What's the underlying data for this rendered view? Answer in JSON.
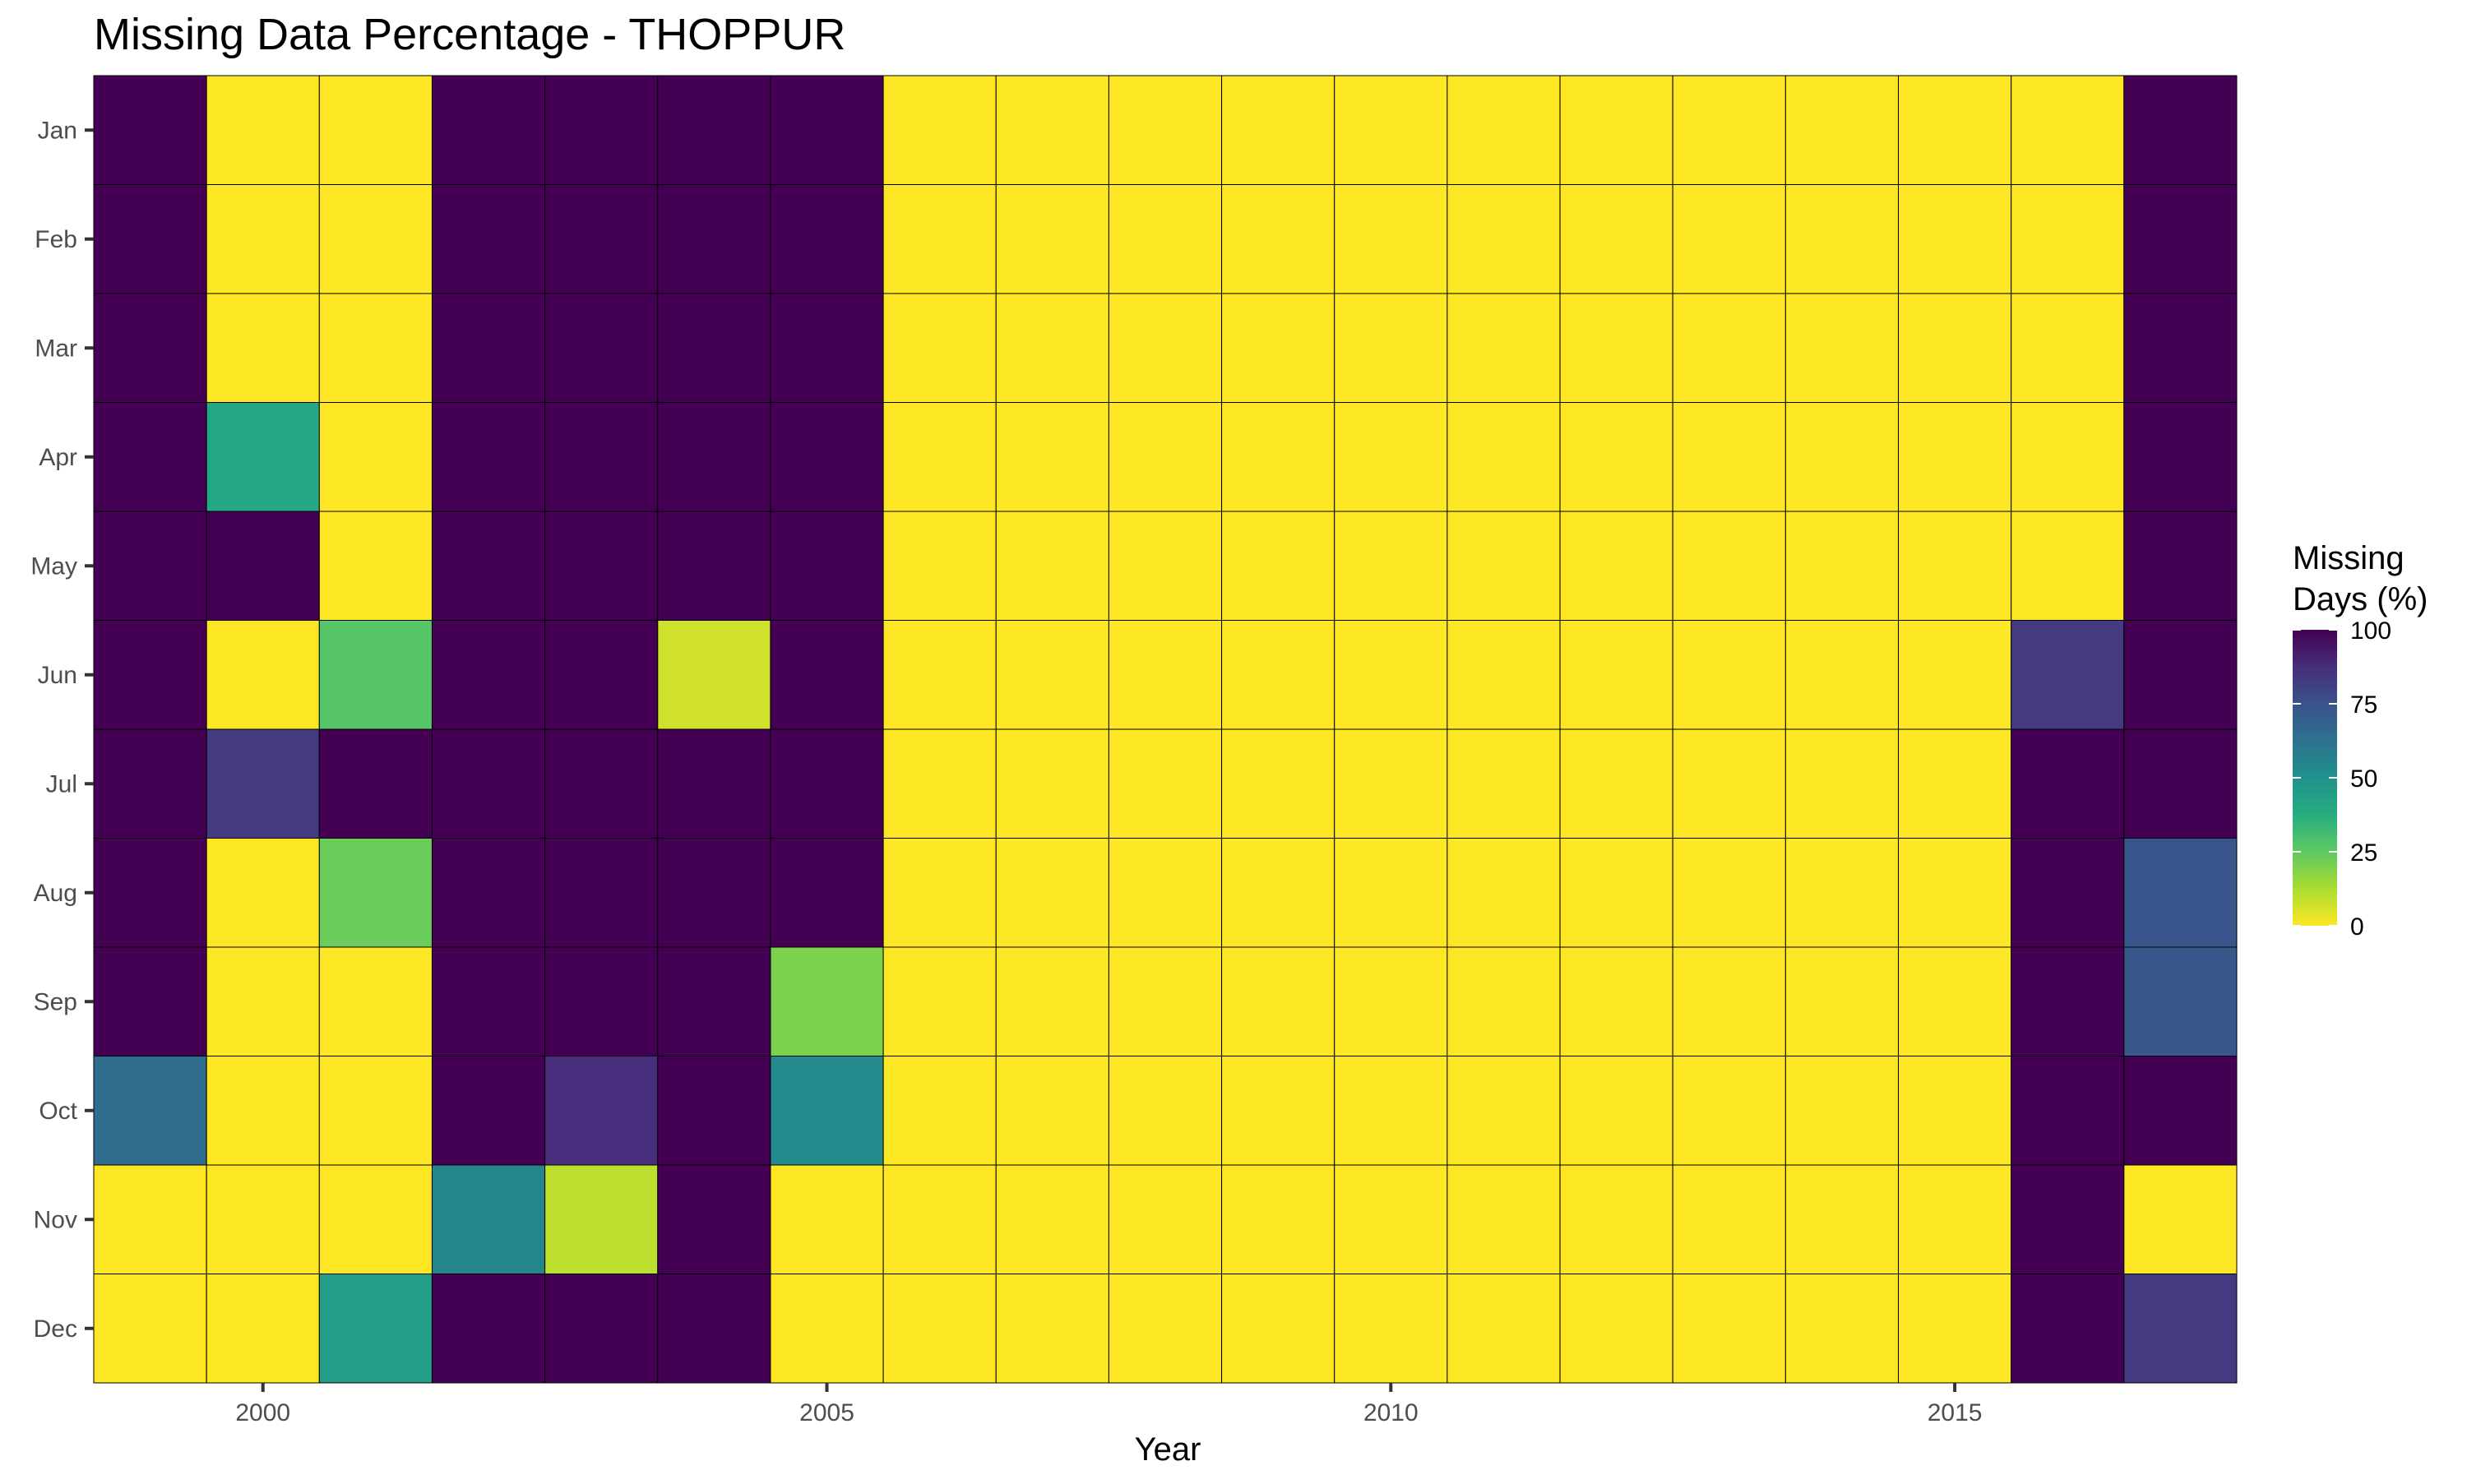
{
  "chart_data": {
    "type": "heatmap",
    "title": "Missing Data Percentage - THOPPUR",
    "xlabel": "Year",
    "ylabel": "",
    "legend": {
      "title_lines": [
        "Missing",
        "Days (%)"
      ],
      "ticks": [
        100,
        75,
        50,
        25,
        0
      ],
      "range": [
        0,
        100
      ],
      "placement": "right",
      "colormap": "viridis (reversed: 0 = yellow, 100 = purple)"
    },
    "x": [
      1999,
      2000,
      2001,
      2002,
      2003,
      2004,
      2005,
      2006,
      2007,
      2008,
      2009,
      2010,
      2011,
      2012,
      2013,
      2014,
      2015,
      2016,
      2017
    ],
    "x_tick_labels": [
      "2000",
      "2005",
      "2010",
      "2015"
    ],
    "x_tick_values": [
      2000,
      2005,
      2010,
      2015
    ],
    "y": [
      "Jan",
      "Feb",
      "Mar",
      "Apr",
      "May",
      "Jun",
      "Jul",
      "Aug",
      "Sep",
      "Oct",
      "Nov",
      "Dec"
    ],
    "values": [
      [
        100,
        0,
        0,
        100,
        100,
        100,
        100,
        0,
        0,
        0,
        0,
        0,
        0,
        0,
        0,
        0,
        0,
        0,
        100
      ],
      [
        100,
        0,
        0,
        100,
        100,
        100,
        100,
        0,
        0,
        0,
        0,
        0,
        0,
        0,
        0,
        0,
        0,
        0,
        100
      ],
      [
        100,
        0,
        0,
        100,
        100,
        100,
        100,
        0,
        0,
        0,
        0,
        0,
        0,
        0,
        0,
        0,
        0,
        0,
        100
      ],
      [
        100,
        40,
        0,
        100,
        100,
        100,
        100,
        0,
        0,
        0,
        0,
        0,
        0,
        0,
        0,
        0,
        0,
        0,
        100
      ],
      [
        100,
        100,
        0,
        100,
        100,
        100,
        100,
        0,
        0,
        0,
        0,
        0,
        0,
        0,
        0,
        0,
        0,
        0,
        100
      ],
      [
        100,
        0,
        27,
        100,
        100,
        7,
        100,
        0,
        0,
        0,
        0,
        0,
        0,
        0,
        0,
        0,
        0,
        83,
        100
      ],
      [
        100,
        83,
        100,
        100,
        100,
        100,
        100,
        0,
        0,
        0,
        0,
        0,
        0,
        0,
        0,
        0,
        0,
        100,
        100
      ],
      [
        100,
        0,
        23,
        100,
        100,
        100,
        100,
        0,
        0,
        0,
        0,
        0,
        0,
        0,
        0,
        0,
        0,
        100,
        74
      ],
      [
        100,
        0,
        0,
        100,
        100,
        100,
        20,
        0,
        0,
        0,
        0,
        0,
        0,
        0,
        0,
        0,
        0,
        100,
        73
      ],
      [
        65,
        0,
        0,
        100,
        87,
        100,
        53,
        0,
        0,
        0,
        0,
        0,
        0,
        0,
        0,
        0,
        0,
        100,
        100
      ],
      [
        0,
        0,
        0,
        55,
        10,
        100,
        0,
        0,
        0,
        0,
        0,
        0,
        0,
        0,
        0,
        0,
        0,
        100,
        0
      ],
      [
        0,
        0,
        45,
        100,
        100,
        100,
        0,
        0,
        0,
        0,
        0,
        0,
        0,
        0,
        0,
        0,
        0,
        100,
        83
      ]
    ],
    "grid": false
  }
}
